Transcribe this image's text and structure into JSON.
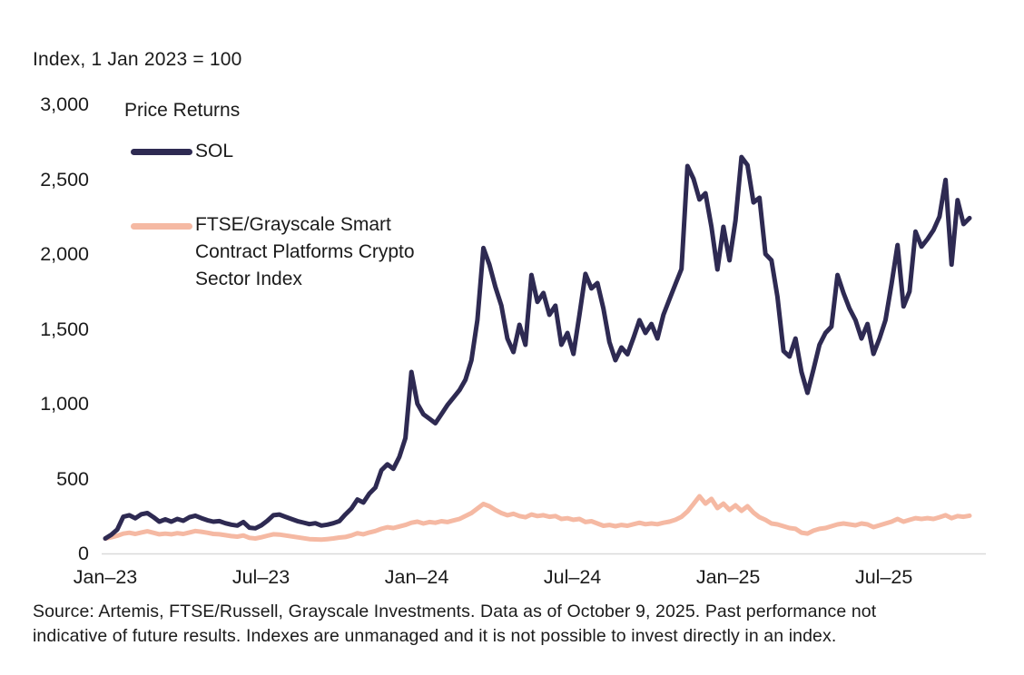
{
  "header": {
    "index_note": "Index, 1 Jan 2023 = 100"
  },
  "legend": {
    "title": "Price Returns",
    "items": [
      {
        "key": "sol",
        "label_lines": [
          "SOL"
        ],
        "color": "#2E2A52"
      },
      {
        "key": "ftse",
        "label_lines": [
          "FTSE/Grayscale Smart",
          "Contract Platforms Crypto",
          "Sector Index"
        ],
        "color": "#F5B9A3"
      }
    ]
  },
  "footer": {
    "source_lines": [
      "Source: Artemis, FTSE/Russell, Grayscale Investments. Data as of October 9, 2025. Past performance not",
      "indicative of future results. Indexes are unmanaged and it is not possible to invest directly in an index."
    ]
  },
  "chart_data": {
    "type": "line",
    "title": "Index, 1 Jan 2023 = 100",
    "legend_title": "Price Returns",
    "legend_position": "top-left",
    "grid": false,
    "ylim": [
      0,
      3000
    ],
    "y_ticks": [
      {
        "value": 3000,
        "label": "3,000"
      },
      {
        "value": 2500,
        "label": "2,500"
      },
      {
        "value": 2000,
        "label": "2,000"
      },
      {
        "value": 1500,
        "label": "1,500"
      },
      {
        "value": 1000,
        "label": "1,000"
      },
      {
        "value": 500,
        "label": "500"
      },
      {
        "value": 0,
        "label": "0"
      }
    ],
    "total_months": 33.3,
    "x_ticks": [
      {
        "label": "Jan–23",
        "month_offset": 0
      },
      {
        "label": "Jul–23",
        "month_offset": 6
      },
      {
        "label": "Jan–24",
        "month_offset": 12
      },
      {
        "label": "Jul–24",
        "month_offset": 18
      },
      {
        "label": "Jan–25",
        "month_offset": 24
      },
      {
        "label": "Jul–25",
        "month_offset": 30
      }
    ],
    "x_resolution": "weekly points, Jan 1 2023 through Oct 9 2025",
    "series": [
      {
        "key": "sol",
        "name": "SOL",
        "color": "#2E2A52",
        "values": [
          100,
          125,
          160,
          245,
          255,
          235,
          262,
          270,
          243,
          212,
          228,
          212,
          230,
          218,
          242,
          252,
          236,
          222,
          212,
          216,
          202,
          192,
          186,
          210,
          172,
          168,
          188,
          218,
          255,
          260,
          245,
          230,
          216,
          206,
          196,
          202,
          186,
          192,
          202,
          216,
          260,
          300,
          360,
          340,
          400,
          440,
          555,
          595,
          565,
          645,
          770,
          1212,
          1000,
          930,
          900,
          870,
          930,
          990,
          1040,
          1090,
          1160,
          1290,
          1560,
          2040,
          1930,
          1780,
          1655,
          1436,
          1345,
          1527,
          1394,
          1860,
          1680,
          1740,
          1594,
          1655,
          1394,
          1473,
          1333,
          1594,
          1867,
          1770,
          1806,
          1636,
          1412,
          1291,
          1376,
          1330,
          1440,
          1558,
          1473,
          1533,
          1436,
          1594,
          1697,
          1800,
          1900,
          2588,
          2503,
          2364,
          2406,
          2182,
          1897,
          2182,
          1958,
          2224,
          2648,
          2594,
          2345,
          2376,
          2000,
          1958,
          1715,
          1352,
          1315,
          1436,
          1212,
          1073,
          1230,
          1394,
          1473,
          1515,
          1860,
          1739,
          1636,
          1558,
          1436,
          1533,
          1333,
          1436,
          1558,
          1800,
          2060,
          1650,
          1750,
          2150,
          2050,
          2100,
          2160,
          2250,
          2495,
          1930,
          2360,
          2200,
          2240
        ]
      },
      {
        "key": "ftse",
        "name": "FTSE/Grayscale Smart Contract Platforms Crypto Sector Index",
        "color": "#F5B9A3",
        "values": [
          100,
          108,
          118,
          132,
          138,
          130,
          140,
          148,
          138,
          128,
          132,
          128,
          135,
          130,
          140,
          150,
          145,
          138,
          130,
          128,
          122,
          116,
          112,
          120,
          104,
          100,
          108,
          118,
          128,
          126,
          120,
          114,
          108,
          102,
          96,
          94,
          92,
          96,
          100,
          106,
          110,
          120,
          135,
          128,
          140,
          150,
          164,
          175,
          170,
          180,
          190,
          205,
          212,
          200,
          210,
          205,
          215,
          210,
          220,
          230,
          250,
          270,
          300,
          330,
          315,
          290,
          270,
          255,
          265,
          250,
          242,
          260,
          250,
          255,
          245,
          250,
          230,
          235,
          225,
          230,
          210,
          215,
          200,
          185,
          190,
          182,
          190,
          185,
          195,
          205,
          195,
          200,
          195,
          205,
          212,
          225,
          245,
          280,
          330,
          382,
          333,
          364,
          303,
          333,
          291,
          321,
          285,
          315,
          273,
          242,
          224,
          200,
          194,
          182,
          170,
          164,
          139,
          133,
          152,
          164,
          170,
          182,
          194,
          200,
          194,
          188,
          200,
          194,
          176,
          188,
          200,
          212,
          230,
          212,
          224,
          236,
          230,
          236,
          230,
          242,
          255,
          236,
          250,
          245,
          252
        ]
      }
    ]
  }
}
